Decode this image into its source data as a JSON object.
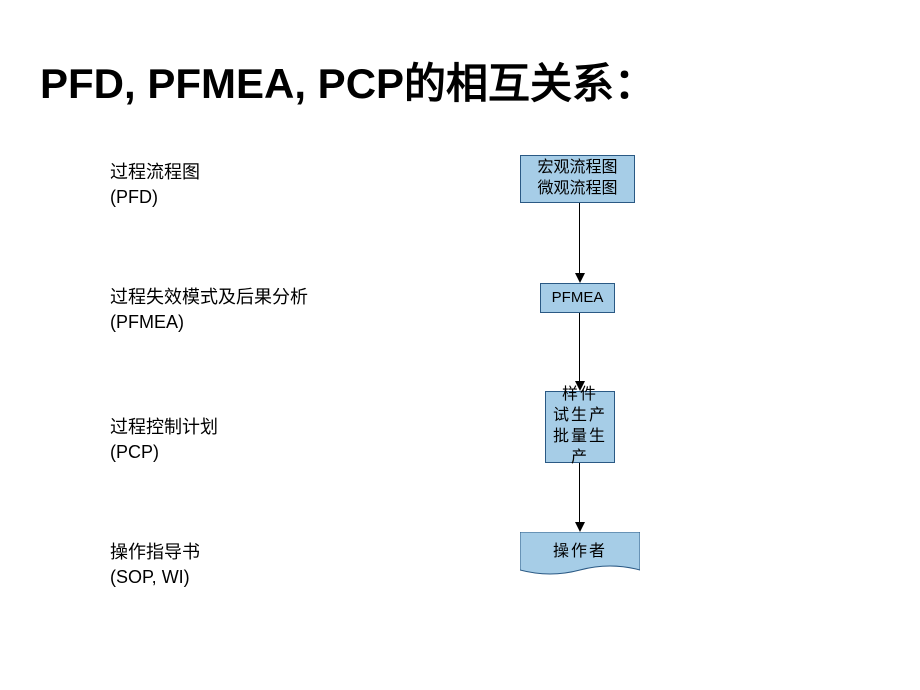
{
  "title": "PFD, PFMEA, PCP的相互关系：",
  "labels": {
    "pfd": {
      "line1": "过程流程图",
      "line2": "(PFD)"
    },
    "pfmea": {
      "line1": "过程失效模式及后果分析",
      "line2": "(PFMEA)"
    },
    "pcp": {
      "line1": "过程控制计划",
      "line2": "(PCP)"
    },
    "sop": {
      "line1": "操作指导书",
      "line2": " (SOP, WI)"
    }
  },
  "flowchart": {
    "type": "flowchart",
    "nodes": [
      {
        "id": "n1",
        "label": "宏观流程图\n微观流程图",
        "shape": "rect"
      },
      {
        "id": "n2",
        "label": "PFMEA",
        "shape": "rect"
      },
      {
        "id": "n3",
        "label": "样件\n试生产\n批量生产",
        "shape": "rect"
      },
      {
        "id": "n4",
        "label": "操作者",
        "shape": "document"
      }
    ],
    "edges": [
      {
        "from": "n1",
        "to": "n2"
      },
      {
        "from": "n2",
        "to": "n3"
      },
      {
        "from": "n3",
        "to": "n4"
      }
    ],
    "node_fill": "#a6cde7",
    "node_border": "#2a5984",
    "arrow_color": "#000000",
    "background_color": "#ffffff",
    "text_color": "#000000",
    "title_fontsize": 42,
    "label_fontsize": 18,
    "node_fontsize": 16
  }
}
